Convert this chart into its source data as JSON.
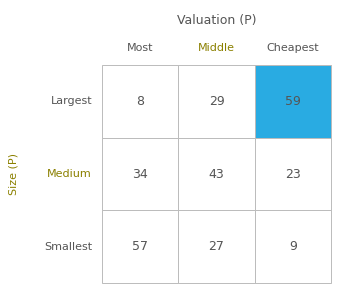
{
  "title": "Valuation (P)",
  "ylabel": "Size (P)",
  "col_labels": [
    "Most",
    "Middle",
    "Cheapest"
  ],
  "row_labels": [
    "Largest",
    "Medium",
    "Smallest"
  ],
  "values": [
    [
      8,
      29,
      59
    ],
    [
      34,
      43,
      23
    ],
    [
      57,
      27,
      9
    ]
  ],
  "highlighted_cell": [
    0,
    2
  ],
  "highlight_color": "#29ABE2",
  "normal_color": "#FFFFFF",
  "grid_color": "#BBBBBB",
  "text_color_normal": "#555555",
  "col_label_colors": [
    "#555555",
    "#8B8000",
    "#555555"
  ],
  "row_label_colors": [
    "#555555",
    "#8B8000",
    "#555555"
  ],
  "ylabel_color": "#8B8000",
  "title_color": "#555555",
  "background_color": "#FFFFFF",
  "value_fontsize": 9,
  "label_fontsize": 8,
  "title_fontsize": 9,
  "ylabel_fontsize": 8
}
